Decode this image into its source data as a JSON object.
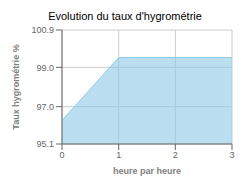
{
  "chart_data": {
    "type": "area",
    "title": "Evolution du taux d'hygrométrie",
    "xlabel": "heure par heure",
    "ylabel": "Taux hygrométrie %",
    "x": [
      0,
      1,
      3
    ],
    "values": [
      96.3,
      99.5,
      99.5
    ],
    "color": "#8ecae6",
    "xlim": [
      0,
      3
    ],
    "ylim": [
      95.1,
      100.9
    ],
    "xticks": [
      0,
      1,
      2,
      3
    ],
    "yticks": [
      95.1,
      {
        "value": 97,
        "label": "97.0"
      },
      {
        "value": 99,
        "label": "99.0"
      },
      100.9
    ],
    "grid": true
  }
}
